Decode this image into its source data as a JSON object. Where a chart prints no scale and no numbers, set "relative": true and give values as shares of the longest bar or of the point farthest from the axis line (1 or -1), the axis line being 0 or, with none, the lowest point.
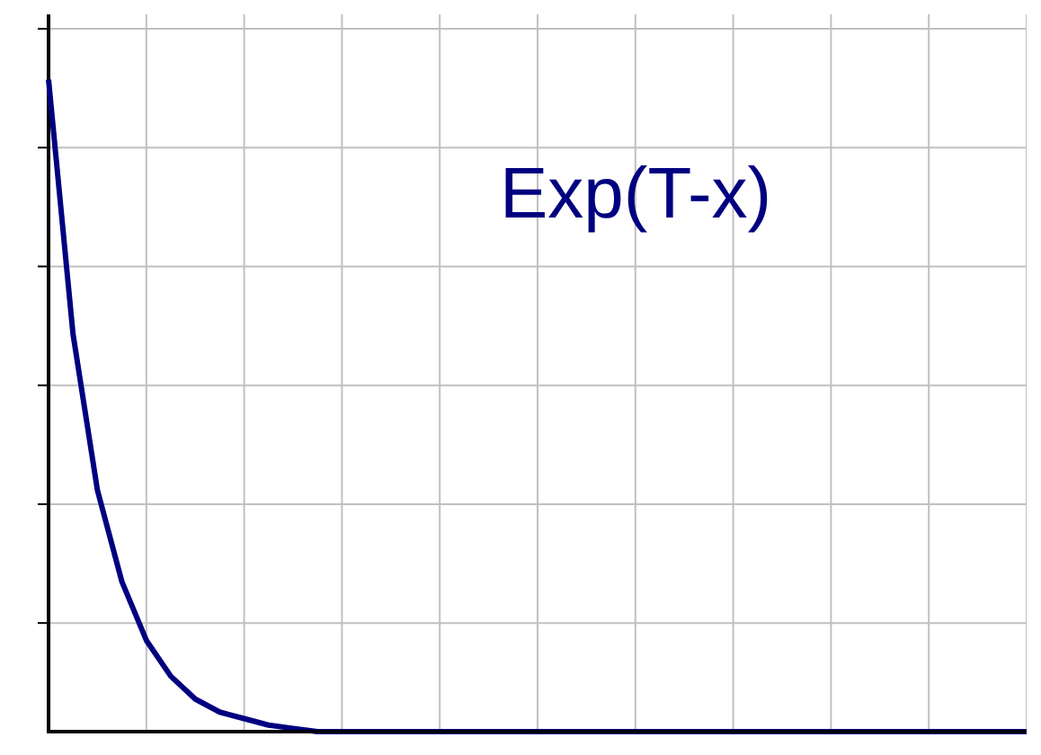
{
  "chart_data": {
    "type": "line",
    "relative": true,
    "annotations": [
      "Exp(T-x)"
    ],
    "grid": true,
    "marker": "none",
    "line_style": "solid",
    "categories": [
      null,
      null,
      null,
      null,
      null,
      null,
      null,
      null,
      null,
      null,
      null,
      null,
      null,
      null,
      null,
      null,
      null,
      null,
      null,
      null,
      null,
      null,
      null,
      null,
      null,
      null,
      null,
      null,
      null,
      null,
      null,
      null,
      null,
      null,
      null,
      null,
      null,
      null,
      null,
      null,
      null
    ],
    "series": [
      {
        "color": "#000080",
        "values": [
          1,
          0.61,
          0.37,
          0.23,
          0.14,
          0.085,
          0.05,
          0.03,
          0.02,
          0.01,
          0.005,
          0,
          0,
          0,
          0,
          0,
          0,
          0,
          0,
          0,
          0,
          0,
          0,
          0,
          0,
          0,
          0,
          0,
          0,
          0,
          0,
          0,
          0,
          0,
          0,
          0,
          0,
          0,
          0,
          0,
          0
        ]
      }
    ]
  }
}
